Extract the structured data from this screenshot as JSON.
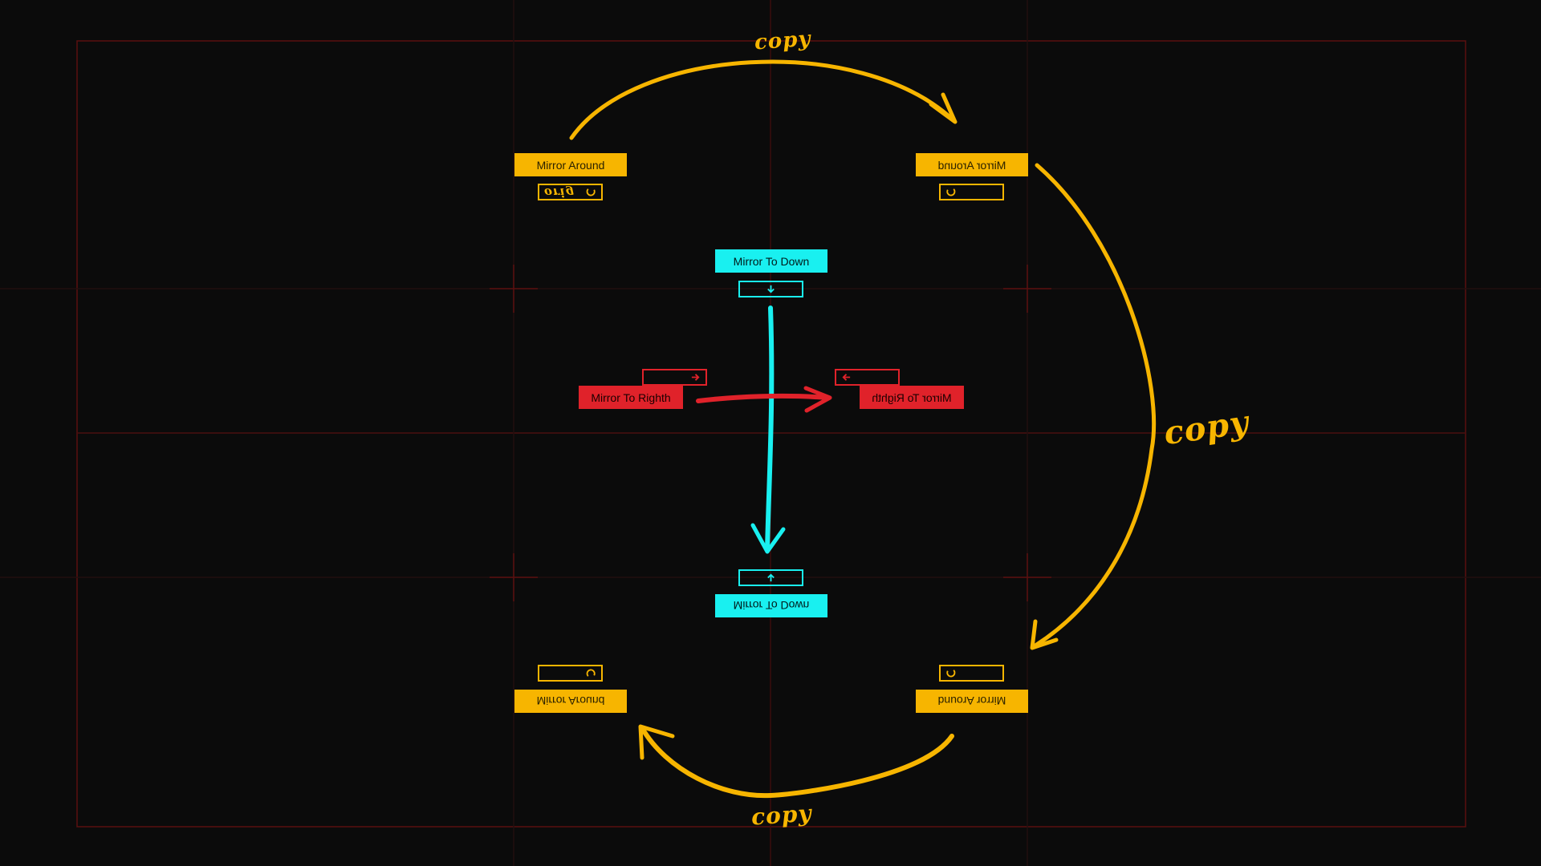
{
  "colors": {
    "background": "#0b0b0b",
    "guide": "#5a1010",
    "guide_dim": "#2a0e0e",
    "gold": "#f7b500",
    "cyan": "#19f0f0",
    "red": "#e0222a"
  },
  "labels": {
    "mirror_around": "Mirror Around",
    "mirror_to_down": "Mirror To Down",
    "mirror_to_right": "Mirror To Righth",
    "orig": "orig",
    "copy": "copy"
  },
  "icons": {
    "around": "rotate-icon",
    "down": "arrow-down-icon",
    "up": "arrow-up-icon",
    "right": "arrow-right-icon",
    "left": "arrow-left-icon"
  }
}
